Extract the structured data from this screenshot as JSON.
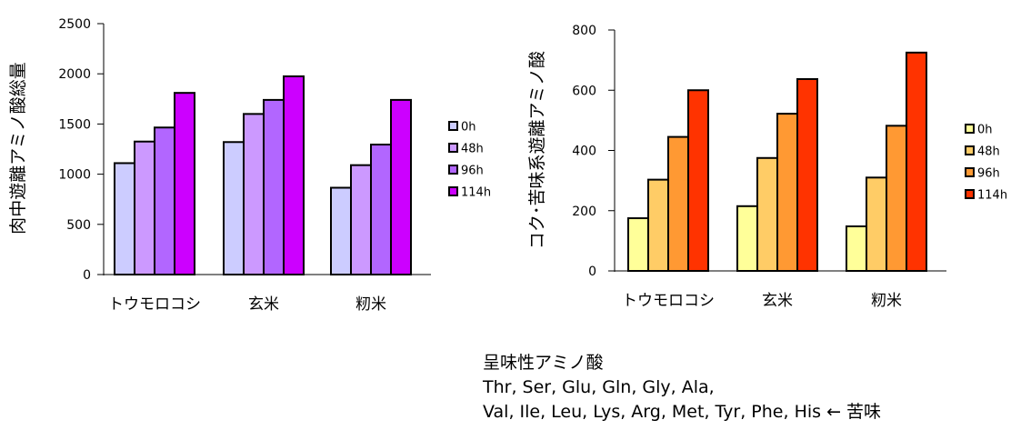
{
  "chart_data": [
    {
      "type": "bar",
      "ylabel": "肉中遊離アミノ酸総量",
      "xlabel": "",
      "ylim": [
        0,
        2500
      ],
      "yticks": [
        0,
        500,
        1000,
        1500,
        2000,
        2500
      ],
      "grid": false,
      "legend": "right",
      "categories": [
        "トウモロコシ",
        "玄米",
        "籾米"
      ],
      "series": [
        {
          "name": "0h",
          "color": "#ccccff",
          "values": [
            1110,
            1320,
            865
          ]
        },
        {
          "name": "48h",
          "color": "#cc99ff",
          "values": [
            1325,
            1600,
            1090
          ]
        },
        {
          "name": "96h",
          "color": "#b266ff",
          "values": [
            1465,
            1740,
            1295
          ]
        },
        {
          "name": "114h",
          "color": "#cc00ff",
          "values": [
            1810,
            1975,
            1740
          ]
        }
      ]
    },
    {
      "type": "bar",
      "ylabel": "コク･苦味系遊離アミノ酸",
      "xlabel": "",
      "ylim": [
        0,
        800
      ],
      "yticks": [
        0,
        200,
        400,
        600,
        800
      ],
      "grid": false,
      "legend": "right",
      "categories": [
        "トウモロコシ",
        "玄米",
        "籾米"
      ],
      "series": [
        {
          "name": "0h",
          "color": "#ffff99",
          "values": [
            175,
            215,
            148
          ]
        },
        {
          "name": "48h",
          "color": "#ffcc66",
          "values": [
            303,
            375,
            310
          ]
        },
        {
          "name": "96h",
          "color": "#ff9933",
          "values": [
            445,
            522,
            482
          ]
        },
        {
          "name": "114h",
          "color": "#ff3300",
          "values": [
            600,
            637,
            725
          ]
        }
      ]
    }
  ],
  "note": {
    "title": "呈味性アミノ酸",
    "line1": "Thr, Ser, Glu, Gln, Gly, Ala,",
    "line2": "Val, Ile, Leu, Lys, Arg, Met, Tyr, Phe, His ← 苦味"
  }
}
